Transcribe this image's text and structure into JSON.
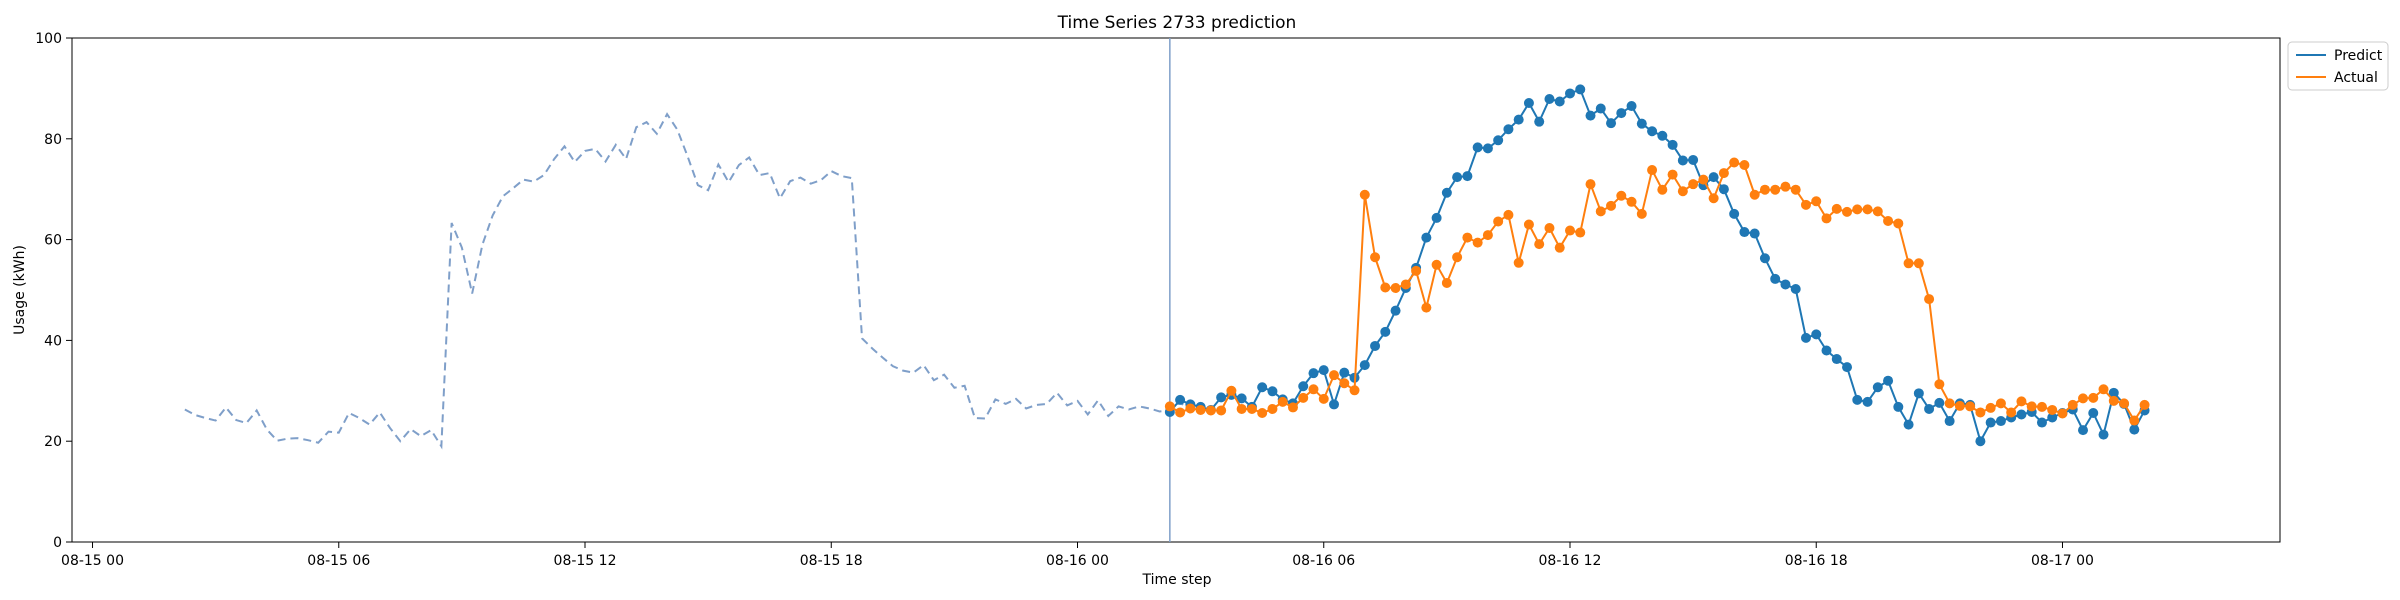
{
  "chart_data": {
    "type": "line",
    "title": "Time Series 2733 prediction",
    "xlabel": "Time step",
    "ylabel": "Usage (kWh)",
    "ylim": [
      0,
      100
    ],
    "yticks": [
      0,
      20,
      40,
      60,
      80,
      100
    ],
    "xlim_hours": [
      -0.5,
      53.3
    ],
    "xticks": [
      {
        "label": "08-15 00",
        "hour": 0
      },
      {
        "label": "08-15 06",
        "hour": 6
      },
      {
        "label": "08-15 12",
        "hour": 12
      },
      {
        "label": "08-15 18",
        "hour": 18
      },
      {
        "label": "08-16 00",
        "hour": 24
      },
      {
        "label": "08-16 06",
        "hour": 30
      },
      {
        "label": "08-16 12",
        "hour": 36
      },
      {
        "label": "08-16 18",
        "hour": 42
      },
      {
        "label": "08-17 00",
        "hour": 48
      }
    ],
    "x_unit_note": "hours from 08-15 00:00, 15-minute steps",
    "forecast_start_hour": 26.25,
    "history": {
      "start_hour": 2.25,
      "step_hours": 0.25,
      "color": "#7f9fc9",
      "values": [
        26.3,
        25.2,
        24.6,
        24.1,
        26.7,
        24.2,
        23.6,
        26.1,
        22.3,
        20.1,
        20.5,
        20.6,
        20.2,
        19.7,
        21.9,
        21.7,
        25.6,
        24.6,
        23.3,
        25.7,
        22.6,
        20.0,
        22.4,
        21.0,
        22.2,
        19.0,
        63.3,
        58.4,
        49.3,
        59.0,
        64.8,
        68.6,
        70.2,
        71.9,
        71.5,
        72.8,
        76.0,
        78.5,
        75.4,
        77.6,
        78.0,
        75.5,
        78.8,
        76.0,
        82.3,
        83.3,
        81.0,
        84.9,
        81.8,
        76.5,
        70.8,
        69.8,
        74.9,
        71.4,
        74.8,
        76.3,
        72.8,
        73.2,
        68.2,
        71.6,
        72.3,
        71.1,
        71.8,
        73.6,
        72.6,
        72.2,
        40.4,
        38.4,
        36.6,
        34.9,
        34.0,
        33.6,
        35.1,
        32.1,
        33.2,
        30.6,
        31.0,
        24.6,
        24.5,
        28.3,
        27.4,
        28.4,
        26.5,
        27.2,
        27.4,
        29.6,
        27.1,
        28.0,
        25.3,
        28.1,
        25.0,
        26.9,
        26.3,
        26.9,
        26.5,
        25.9,
        26.1,
        27.8,
        25.6
      ]
    },
    "series": [
      {
        "name": "Predict",
        "color": "#1f77b4",
        "start_hour": 26.25,
        "step_hours": 0.25,
        "values": [
          25.8,
          28.2,
          27.3,
          26.8,
          26.2,
          28.7,
          29.2,
          28.5,
          26.8,
          30.7,
          29.9,
          28.3,
          27.5,
          30.9,
          33.5,
          34.1,
          27.3,
          33.6,
          32.6,
          35.1,
          38.9,
          41.7,
          45.9,
          50.4,
          54.4,
          60.4,
          64.3,
          69.3,
          72.4,
          72.6,
          78.3,
          78.1,
          79.7,
          81.9,
          83.8,
          87.1,
          83.4,
          87.9,
          87.4,
          89.0,
          89.8,
          84.6,
          86.0,
          83.1,
          85.1,
          86.5,
          83.0,
          81.5,
          80.6,
          78.8,
          75.7,
          75.8,
          70.8,
          72.4,
          70.0,
          65.1,
          61.5,
          61.2,
          56.3,
          52.2,
          51.1,
          50.2,
          40.5,
          41.2,
          38.0,
          36.3,
          34.7,
          28.2,
          27.8,
          30.7,
          32.0,
          26.8,
          23.3,
          29.5,
          26.4,
          27.6,
          24.0,
          27.5,
          27.2,
          20.0,
          23.7,
          24.0,
          24.7,
          25.3,
          25.8,
          23.7,
          24.7,
          25.6,
          26.3,
          22.2,
          25.6,
          21.3,
          29.6,
          27.4,
          22.3,
          26.1
        ]
      },
      {
        "name": "Actual",
        "color": "#ff7f0e",
        "start_hour": 26.25,
        "step_hours": 0.25,
        "values": [
          26.9,
          25.7,
          26.5,
          26.2,
          26.1,
          26.1,
          30.0,
          26.4,
          26.4,
          25.6,
          26.4,
          27.8,
          26.7,
          28.6,
          30.3,
          28.4,
          33.1,
          31.5,
          30.1,
          68.9,
          56.5,
          50.5,
          50.4,
          51.1,
          53.8,
          46.5,
          55.0,
          51.4,
          56.5,
          60.4,
          59.4,
          60.9,
          63.6,
          64.9,
          55.4,
          63.0,
          59.1,
          62.3,
          58.4,
          61.8,
          61.4,
          71.0,
          65.6,
          66.7,
          68.7,
          67.5,
          65.1,
          73.8,
          69.9,
          72.9,
          69.6,
          71.0,
          71.9,
          68.2,
          73.2,
          75.3,
          74.8,
          68.9,
          69.9,
          69.9,
          70.5,
          69.9,
          66.9,
          67.6,
          64.2,
          66.1,
          65.5,
          66.0,
          66.0,
          65.6,
          63.7,
          63.2,
          55.3,
          55.3,
          48.2,
          31.3,
          27.5,
          27.0,
          26.9,
          25.7,
          26.6,
          27.5,
          25.7,
          27.9,
          26.9,
          26.8,
          26.2,
          25.5,
          27.2,
          28.5,
          28.6,
          30.3,
          28.0,
          27.5,
          24.1,
          27.2
        ]
      }
    ],
    "grid": false,
    "legend_position": "top-right"
  }
}
